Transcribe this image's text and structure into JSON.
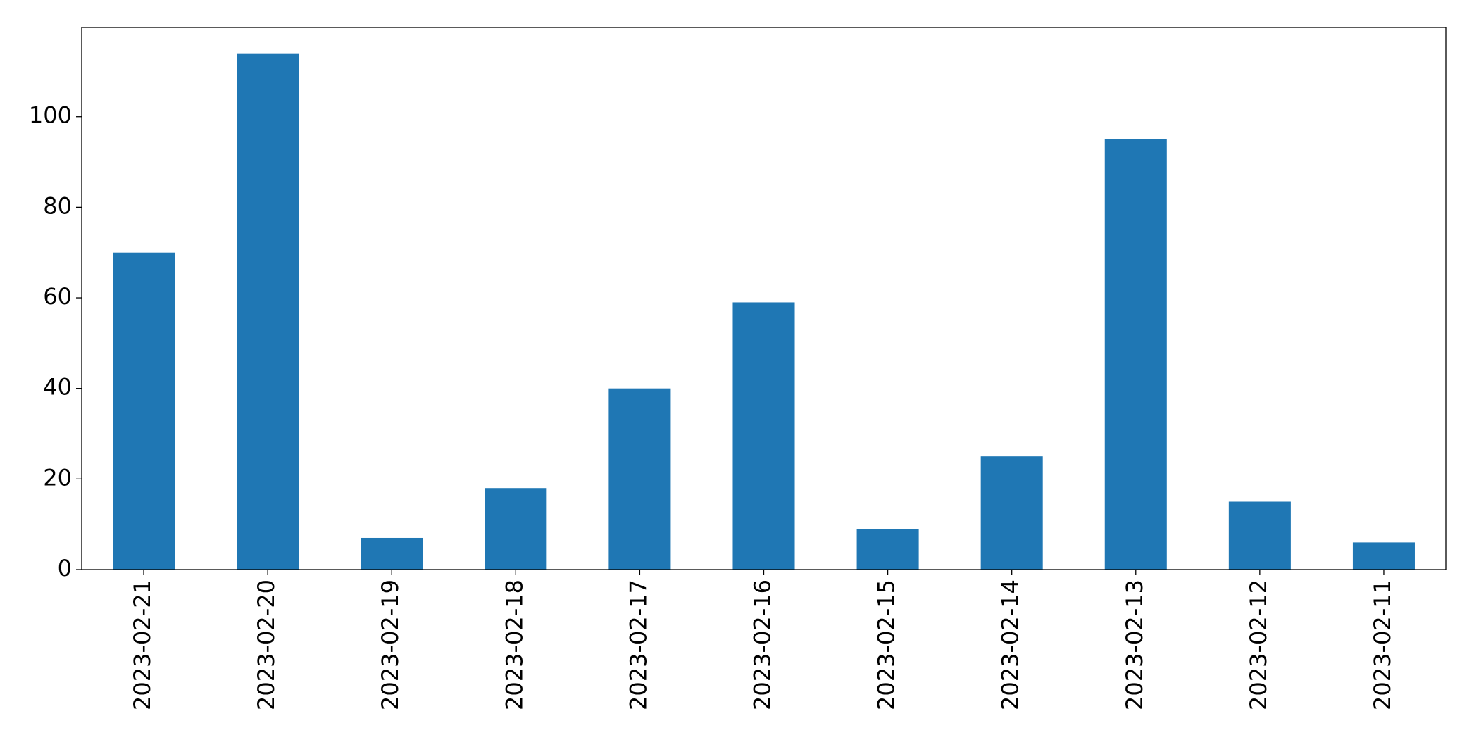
{
  "chart_data": {
    "type": "bar",
    "categories": [
      "2023-02-21",
      "2023-02-20",
      "2023-02-19",
      "2023-02-18",
      "2023-02-17",
      "2023-02-16",
      "2023-02-15",
      "2023-02-14",
      "2023-02-13",
      "2023-02-12",
      "2023-02-11"
    ],
    "values": [
      70,
      114,
      7,
      18,
      40,
      59,
      9,
      25,
      95,
      15,
      6
    ],
    "color": "#1f77b4",
    "ylim": [
      0,
      119.7
    ],
    "yticks": [
      0,
      20,
      40,
      60,
      80,
      100
    ],
    "grid": false
  }
}
